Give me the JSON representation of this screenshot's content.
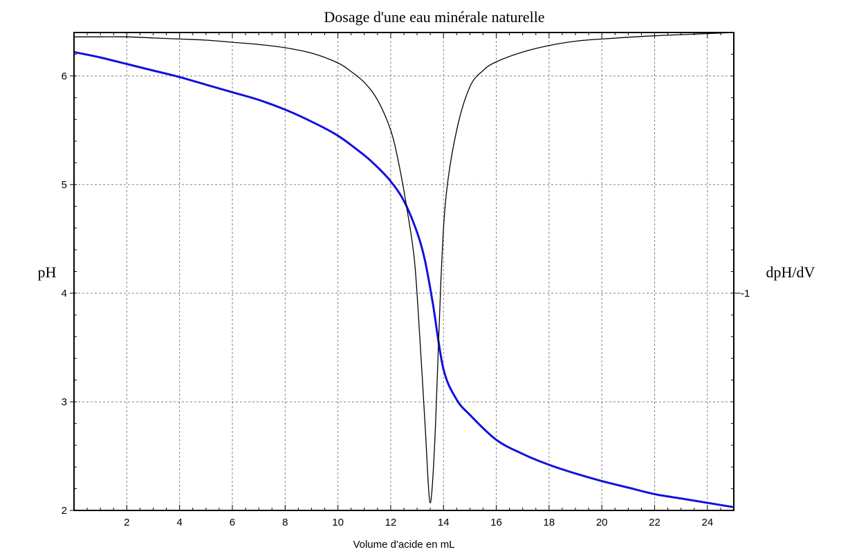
{
  "chart_data": {
    "type": "line",
    "title": "Dosage d'une eau minérale naturelle",
    "xlabel": "Volume d'acide en mL",
    "ylabel": "pH",
    "y2label": "dpH/dV",
    "xlim": [
      0,
      25
    ],
    "ylim": [
      2,
      6.4
    ],
    "x_ticks": [
      2,
      4,
      6,
      8,
      10,
      12,
      14,
      16,
      18,
      20,
      22,
      24
    ],
    "y_ticks": [
      2,
      3,
      4,
      5,
      6
    ],
    "y2_ticks": [
      {
        "value": 4,
        "label": "-1"
      }
    ],
    "grid": true,
    "series": [
      {
        "color": "#1010e0",
        "x": [
          0,
          1,
          2,
          3,
          4,
          5,
          6,
          7,
          8,
          9,
          10,
          11,
          11.5,
          12,
          12.5,
          13,
          13.3,
          13.6,
          14,
          14.5,
          15,
          16,
          17,
          18,
          19,
          20,
          21,
          22,
          23,
          24,
          25
        ],
        "y": [
          6.22,
          6.17,
          6.11,
          6.05,
          5.99,
          5.92,
          5.85,
          5.78,
          5.69,
          5.58,
          5.45,
          5.27,
          5.16,
          5.03,
          4.85,
          4.56,
          4.3,
          3.9,
          3.3,
          3.02,
          2.88,
          2.65,
          2.52,
          2.42,
          2.34,
          2.27,
          2.21,
          2.15,
          2.11,
          2.07,
          2.03
        ]
      },
      {
        "color": "#000000",
        "x": [
          0,
          1,
          2,
          3,
          4,
          5,
          6,
          7,
          8,
          9,
          10,
          10.5,
          11,
          11.5,
          12,
          12.3,
          12.6,
          12.9,
          13.1,
          13.3,
          13.45,
          13.55,
          13.7,
          13.9,
          14.1,
          14.5,
          15,
          15.5,
          16,
          17,
          18,
          19,
          20,
          22,
          24,
          25
        ],
        "y": [
          6.36,
          6.36,
          6.36,
          6.35,
          6.34,
          6.33,
          6.31,
          6.29,
          6.26,
          6.21,
          6.12,
          6.04,
          5.94,
          5.78,
          5.5,
          5.2,
          4.8,
          4.3,
          3.6,
          2.8,
          2.15,
          2.15,
          2.8,
          4.1,
          4.9,
          5.5,
          5.9,
          6.05,
          6.13,
          6.22,
          6.28,
          6.32,
          6.34,
          6.37,
          6.39,
          6.4
        ]
      }
    ]
  }
}
